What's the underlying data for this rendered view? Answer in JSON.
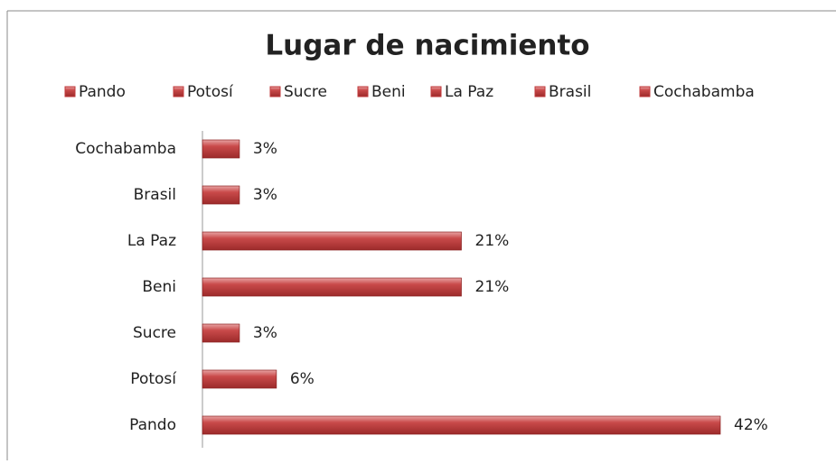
{
  "chart_data": {
    "type": "bar",
    "orientation": "horizontal",
    "title": "Lugar de nacimiento",
    "categories": [
      "Pando",
      "Potosí",
      "Sucre",
      "Beni",
      "La Paz",
      "Brasil",
      "Cochabamba"
    ],
    "values": [
      42,
      6,
      3,
      21,
      21,
      3,
      3
    ],
    "value_labels": [
      "42%",
      "6%",
      "3%",
      "21%",
      "21%",
      "3%",
      "3%"
    ],
    "color": "#c0393b",
    "legend": "top"
  }
}
